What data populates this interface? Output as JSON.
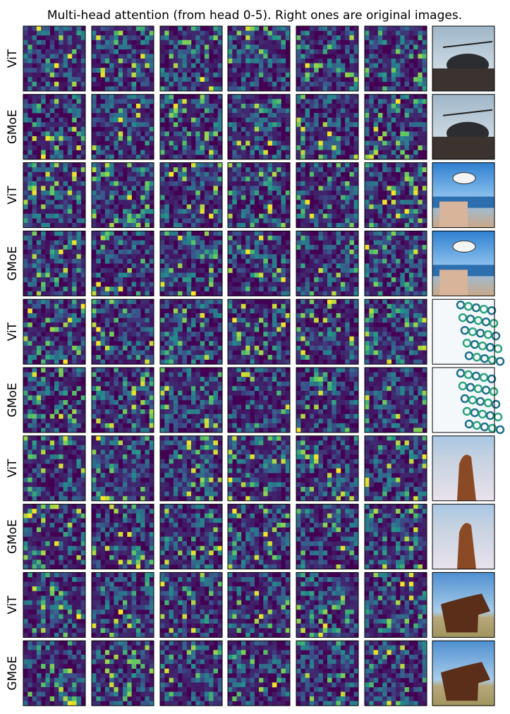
{
  "title": "Multi-head attention (from head 0-5). Right ones are original images.",
  "rows": [
    {
      "label": "ViT"
    },
    {
      "label": "GMoE"
    },
    {
      "label": "ViT"
    },
    {
      "label": "GMoE"
    },
    {
      "label": "ViT"
    },
    {
      "label": "GMoE"
    },
    {
      "label": "ViT"
    },
    {
      "label": "GMoE"
    },
    {
      "label": "ViT"
    },
    {
      "label": "GMoE"
    }
  ]
}
